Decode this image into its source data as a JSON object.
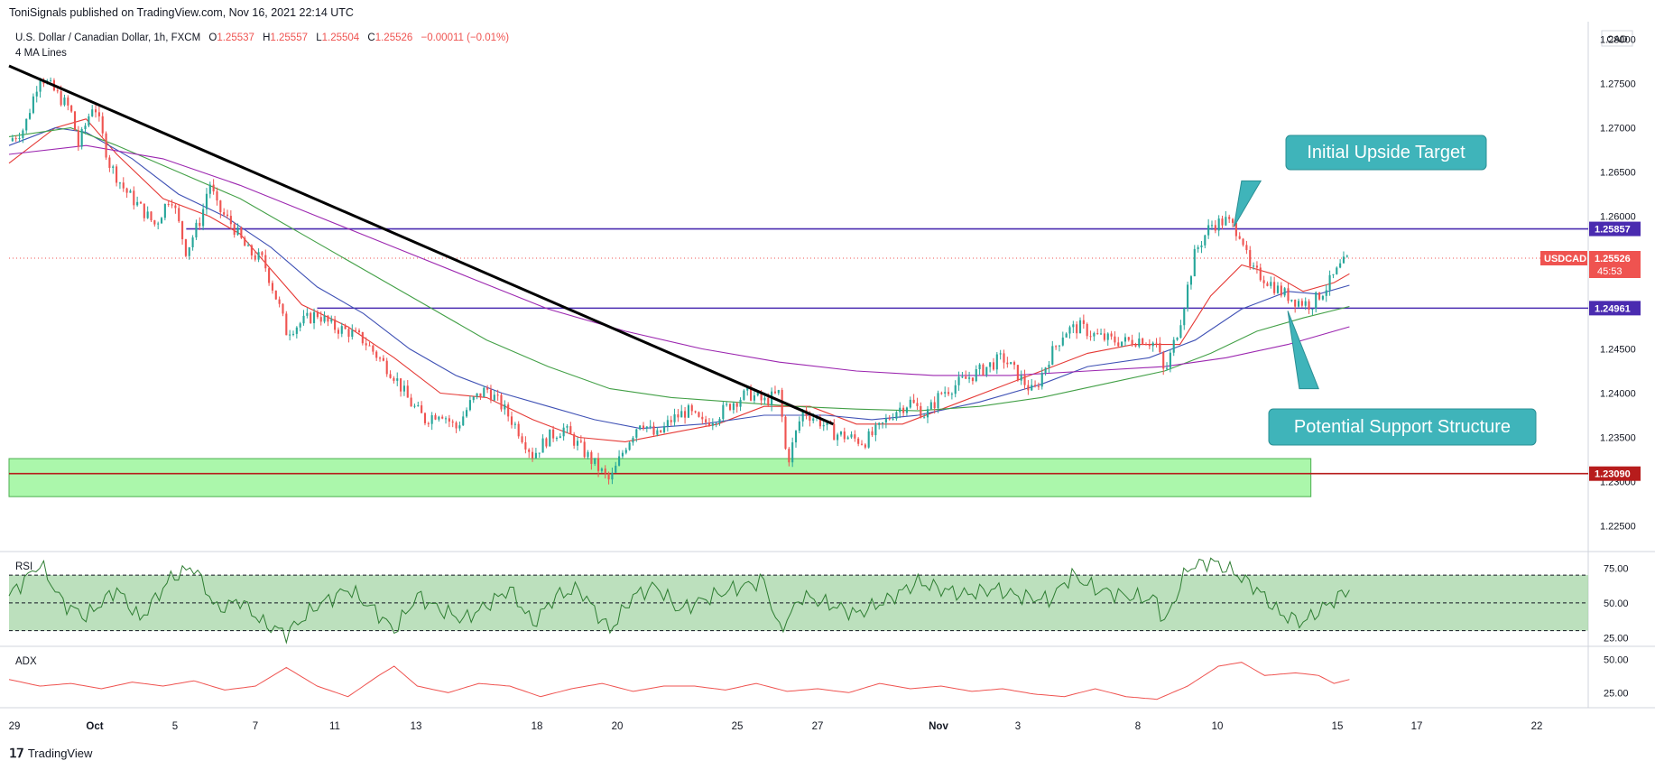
{
  "header": {
    "publisher_line": "ToniSignals published on TradingView.com, Nov 16, 2021 22:14 UTC"
  },
  "legend": {
    "symbol": "U.S. Dollar / Canadian Dollar, 1h, FXCM",
    "o_label": "O",
    "o_value": "1.25537",
    "h_label": "H",
    "h_value": "1.25557",
    "l_label": "L",
    "l_value": "1.25504",
    "c_label": "C",
    "c_value": "1.25526",
    "change": "−0.00011 (−0.01%)",
    "indicator": "4 MA Lines"
  },
  "footer": {
    "brand": "TradingView"
  },
  "colors": {
    "up": "#26a69a",
    "down": "#ef5350",
    "ma_fast": "#e53935",
    "ma_mid": "#3f51b5",
    "ma_slow": "#43a047",
    "ma_long": "#9c27b0",
    "hline": "#4a2bb0",
    "support_line": "#b71c1c",
    "zone": "#7ef27e",
    "callout": "#3fb4ba",
    "rsi_line": "#2e7d32",
    "rsi_band": "#a5d6a7",
    "adx_line": "#ef5350"
  },
  "chart_data": {
    "type": "line",
    "series_type": "candlestick",
    "currency": "CAD",
    "price_axis": {
      "ylim": [
        1.2225,
        1.282
      ],
      "ticks": [
        "1.28000",
        "1.27500",
        "1.27000",
        "1.26500",
        "1.26000",
        "1.25500",
        "1.25000",
        "1.24500",
        "1.24000",
        "1.23500",
        "1.23000",
        "1.22500"
      ],
      "tick_values": [
        1.28,
        1.275,
        1.27,
        1.265,
        1.26,
        1.255,
        1.25,
        1.245,
        1.24,
        1.235,
        1.23,
        1.225
      ]
    },
    "time_axis": {
      "labels": [
        "29",
        "Oct",
        "5",
        "7",
        "11",
        "13",
        "18",
        "20",
        "25",
        "27",
        "Nov",
        "3",
        "8",
        "10",
        "15",
        "17",
        "22"
      ],
      "bold_labels": [
        "Oct",
        "Nov"
      ]
    },
    "horizontal_levels": [
      {
        "value": 1.25857,
        "label": "1.25857",
        "kind": "resistance"
      },
      {
        "value": 1.24961,
        "label": "1.24961",
        "kind": "support"
      },
      {
        "value": 1.2309,
        "label": "1.23090",
        "kind": "support-zone"
      }
    ],
    "last_price": {
      "symbol": "USDCAD",
      "value": "1.25526",
      "countdown": "45:53"
    },
    "support_zone": [
      1.2283,
      1.2326
    ],
    "trendline": {
      "from": [
        "Sep 29",
        1.277
      ],
      "to": [
        "Nov 2",
        1.2365
      ]
    },
    "annotations": [
      {
        "text": "Initial Upside Target"
      },
      {
        "text": "Potential Support Structure"
      }
    ],
    "price_path": [
      [
        0,
        1.2685
      ],
      [
        2,
        1.27
      ],
      [
        4,
        1.276
      ],
      [
        6,
        1.274
      ],
      [
        8,
        1.272
      ],
      [
        9,
        1.268
      ],
      [
        11,
        1.273
      ],
      [
        13,
        1.266
      ],
      [
        15,
        1.263
      ],
      [
        17,
        1.261
      ],
      [
        19,
        1.259
      ],
      [
        21,
        1.2625
      ],
      [
        23,
        1.256
      ],
      [
        25,
        1.26
      ],
      [
        26,
        1.264
      ],
      [
        27,
        1.261
      ],
      [
        29,
        1.259
      ],
      [
        31,
        1.256
      ],
      [
        33,
        1.255
      ],
      [
        35,
        1.25
      ],
      [
        36,
        1.247
      ],
      [
        38,
        1.248
      ],
      [
        40,
        1.249
      ],
      [
        42,
        1.2475
      ],
      [
        44,
        1.247
      ],
      [
        46,
        1.246
      ],
      [
        48,
        1.244
      ],
      [
        50,
        1.242
      ],
      [
        52,
        1.239
      ],
      [
        54,
        1.237
      ],
      [
        56,
        1.238
      ],
      [
        58,
        1.236
      ],
      [
        60,
        1.239
      ],
      [
        62,
        1.2405
      ],
      [
        64,
        1.2385
      ],
      [
        66,
        1.236
      ],
      [
        68,
        1.233
      ],
      [
        70,
        1.235
      ],
      [
        72,
        1.236
      ],
      [
        74,
        1.234
      ],
      [
        76,
        1.232
      ],
      [
        78,
        1.23
      ],
      [
        80,
        1.234
      ],
      [
        82,
        1.237
      ],
      [
        84,
        1.235
      ],
      [
        86,
        1.237
      ],
      [
        88,
        1.238
      ],
      [
        90,
        1.2365
      ],
      [
        92,
        1.2375
      ],
      [
        94,
        1.239
      ],
      [
        96,
        1.24
      ],
      [
        98,
        1.239
      ],
      [
        100,
        1.24
      ],
      [
        101,
        1.232
      ],
      [
        103,
        1.238
      ],
      [
        105,
        1.237
      ],
      [
        107,
        1.2355
      ],
      [
        109,
        1.235
      ],
      [
        111,
        1.2345
      ],
      [
        113,
        1.236
      ],
      [
        115,
        1.238
      ],
      [
        117,
        1.239
      ],
      [
        119,
        1.2375
      ],
      [
        121,
        1.24
      ],
      [
        123,
        1.241
      ],
      [
        125,
        1.242
      ],
      [
        127,
        1.243
      ],
      [
        129,
        1.244
      ],
      [
        131,
        1.242
      ],
      [
        133,
        1.24
      ],
      [
        135,
        1.244
      ],
      [
        137,
        1.247
      ],
      [
        139,
        1.2475
      ],
      [
        141,
        1.2465
      ],
      [
        143,
        1.246
      ],
      [
        145,
        1.2458
      ],
      [
        147,
        1.2462
      ],
      [
        149,
        1.2455
      ],
      [
        150,
        1.242
      ],
      [
        152,
        1.248
      ],
      [
        154,
        1.256
      ],
      [
        156,
        1.259
      ],
      [
        158,
        1.2595
      ],
      [
        160,
        1.258
      ],
      [
        161,
        1.254
      ],
      [
        163,
        1.253
      ],
      [
        165,
        1.2515
      ],
      [
        167,
        1.2505
      ],
      [
        169,
        1.25
      ],
      [
        171,
        1.252
      ],
      [
        173,
        1.2545
      ],
      [
        174,
        1.2552
      ]
    ],
    "moving_averages": [
      {
        "color": "ma_fast",
        "path": [
          [
            0,
            1.266
          ],
          [
            6,
            1.27
          ],
          [
            10,
            1.271
          ],
          [
            14,
            1.267
          ],
          [
            20,
            1.262
          ],
          [
            26,
            1.26
          ],
          [
            30,
            1.258
          ],
          [
            34,
            1.254
          ],
          [
            38,
            1.25
          ],
          [
            44,
            1.2475
          ],
          [
            50,
            1.244
          ],
          [
            56,
            1.24
          ],
          [
            62,
            1.2395
          ],
          [
            68,
            1.237
          ],
          [
            74,
            1.235
          ],
          [
            80,
            1.2345
          ],
          [
            86,
            1.2355
          ],
          [
            92,
            1.2365
          ],
          [
            98,
            1.2385
          ],
          [
            104,
            1.2385
          ],
          [
            110,
            1.2365
          ],
          [
            116,
            1.2365
          ],
          [
            122,
            1.2385
          ],
          [
            128,
            1.2405
          ],
          [
            134,
            1.2425
          ],
          [
            140,
            1.2445
          ],
          [
            146,
            1.2455
          ],
          [
            152,
            1.2455
          ],
          [
            156,
            1.251
          ],
          [
            160,
            1.2545
          ],
          [
            164,
            1.2535
          ],
          [
            168,
            1.2515
          ],
          [
            172,
            1.2525
          ],
          [
            174,
            1.2535
          ]
        ]
      },
      {
        "color": "ma_mid",
        "path": [
          [
            0,
            1.268
          ],
          [
            6,
            1.27
          ],
          [
            10,
            1.2695
          ],
          [
            16,
            1.2665
          ],
          [
            22,
            1.2625
          ],
          [
            28,
            1.26
          ],
          [
            34,
            1.2565
          ],
          [
            40,
            1.252
          ],
          [
            46,
            1.249
          ],
          [
            52,
            1.245
          ],
          [
            58,
            1.242
          ],
          [
            64,
            1.24
          ],
          [
            70,
            1.2385
          ],
          [
            76,
            1.237
          ],
          [
            82,
            1.236
          ],
          [
            90,
            1.2365
          ],
          [
            98,
            1.2375
          ],
          [
            106,
            1.2375
          ],
          [
            112,
            1.237
          ],
          [
            118,
            1.2375
          ],
          [
            126,
            1.239
          ],
          [
            134,
            1.241
          ],
          [
            140,
            1.243
          ],
          [
            148,
            1.244
          ],
          [
            154,
            1.246
          ],
          [
            160,
            1.2495
          ],
          [
            166,
            1.2515
          ],
          [
            170,
            1.2512
          ],
          [
            174,
            1.2522
          ]
        ]
      },
      {
        "color": "ma_slow",
        "path": [
          [
            0,
            1.269
          ],
          [
            8,
            1.27
          ],
          [
            14,
            1.268
          ],
          [
            22,
            1.265
          ],
          [
            30,
            1.262
          ],
          [
            38,
            1.258
          ],
          [
            46,
            1.254
          ],
          [
            54,
            1.25
          ],
          [
            62,
            1.246
          ],
          [
            70,
            1.243
          ],
          [
            78,
            1.2405
          ],
          [
            86,
            1.2395
          ],
          [
            94,
            1.239
          ],
          [
            102,
            1.2385
          ],
          [
            110,
            1.2382
          ],
          [
            118,
            1.238
          ],
          [
            126,
            1.2385
          ],
          [
            134,
            1.2395
          ],
          [
            142,
            1.241
          ],
          [
            150,
            1.2425
          ],
          [
            156,
            1.2445
          ],
          [
            162,
            1.247
          ],
          [
            168,
            1.2485
          ],
          [
            174,
            1.2498
          ]
        ]
      },
      {
        "color": "ma_long",
        "path": [
          [
            0,
            1.267
          ],
          [
            10,
            1.268
          ],
          [
            20,
            1.2665
          ],
          [
            30,
            1.2635
          ],
          [
            40,
            1.26
          ],
          [
            50,
            1.2565
          ],
          [
            60,
            1.253
          ],
          [
            70,
            1.2495
          ],
          [
            80,
            1.247
          ],
          [
            90,
            1.245
          ],
          [
            100,
            1.2435
          ],
          [
            110,
            1.2425
          ],
          [
            120,
            1.242
          ],
          [
            130,
            1.242
          ],
          [
            140,
            1.2425
          ],
          [
            150,
            1.243
          ],
          [
            158,
            1.244
          ],
          [
            166,
            1.2455
          ],
          [
            174,
            1.2475
          ]
        ]
      }
    ],
    "rsi": {
      "label": "RSI",
      "ylim": [
        20,
        85
      ],
      "ticks": [
        "75.00",
        "50.00",
        "25.00"
      ],
      "tick_values": [
        75,
        50,
        25
      ],
      "band": [
        30,
        70
      ],
      "path": [
        [
          0,
          55
        ],
        [
          4,
          78
        ],
        [
          7,
          50
        ],
        [
          10,
          40
        ],
        [
          14,
          60
        ],
        [
          17,
          38
        ],
        [
          21,
          68
        ],
        [
          24,
          76
        ],
        [
          27,
          45
        ],
        [
          30,
          52
        ],
        [
          33,
          35
        ],
        [
          36,
          28
        ],
        [
          40,
          48
        ],
        [
          44,
          60
        ],
        [
          48,
          42
        ],
        [
          50,
          30
        ],
        [
          53,
          55
        ],
        [
          56,
          45
        ],
        [
          59,
          38
        ],
        [
          62,
          48
        ],
        [
          65,
          60
        ],
        [
          68,
          35
        ],
        [
          71,
          55
        ],
        [
          74,
          60
        ],
        [
          78,
          30
        ],
        [
          81,
          55
        ],
        [
          84,
          62
        ],
        [
          87,
          45
        ],
        [
          90,
          52
        ],
        [
          94,
          60
        ],
        [
          98,
          66
        ],
        [
          100,
          30
        ],
        [
          103,
          55
        ],
        [
          107,
          48
        ],
        [
          110,
          42
        ],
        [
          114,
          52
        ],
        [
          118,
          65
        ],
        [
          121,
          60
        ],
        [
          124,
          56
        ],
        [
          128,
          60
        ],
        [
          131,
          55
        ],
        [
          135,
          52
        ],
        [
          138,
          70
        ],
        [
          141,
          60
        ],
        [
          145,
          55
        ],
        [
          149,
          52
        ],
        [
          150,
          35
        ],
        [
          153,
          75
        ],
        [
          156,
          80
        ],
        [
          159,
          72
        ],
        [
          162,
          60
        ],
        [
          165,
          42
        ],
        [
          168,
          36
        ],
        [
          171,
          48
        ],
        [
          174,
          60
        ]
      ]
    },
    "adx": {
      "label": "ADX",
      "ylim": [
        15,
        58
      ],
      "ticks": [
        "50.00",
        "25.00"
      ],
      "tick_values": [
        50,
        25
      ],
      "path": [
        [
          0,
          35
        ],
        [
          4,
          30
        ],
        [
          8,
          32
        ],
        [
          12,
          28
        ],
        [
          16,
          33
        ],
        [
          20,
          30
        ],
        [
          24,
          34
        ],
        [
          28,
          27
        ],
        [
          32,
          30
        ],
        [
          36,
          44
        ],
        [
          40,
          30
        ],
        [
          44,
          22
        ],
        [
          48,
          38
        ],
        [
          50,
          45
        ],
        [
          53,
          30
        ],
        [
          57,
          25
        ],
        [
          61,
          32
        ],
        [
          65,
          30
        ],
        [
          69,
          22
        ],
        [
          73,
          28
        ],
        [
          77,
          32
        ],
        [
          81,
          26
        ],
        [
          85,
          30
        ],
        [
          89,
          30
        ],
        [
          93,
          27
        ],
        [
          97,
          32
        ],
        [
          101,
          26
        ],
        [
          105,
          28
        ],
        [
          109,
          25
        ],
        [
          113,
          32
        ],
        [
          117,
          28
        ],
        [
          121,
          30
        ],
        [
          125,
          26
        ],
        [
          129,
          28
        ],
        [
          133,
          24
        ],
        [
          137,
          22
        ],
        [
          141,
          28
        ],
        [
          145,
          22
        ],
        [
          149,
          20
        ],
        [
          153,
          30
        ],
        [
          157,
          45
        ],
        [
          160,
          48
        ],
        [
          163,
          38
        ],
        [
          167,
          40
        ],
        [
          170,
          38
        ],
        [
          172,
          32
        ],
        [
          174,
          35
        ]
      ]
    }
  }
}
